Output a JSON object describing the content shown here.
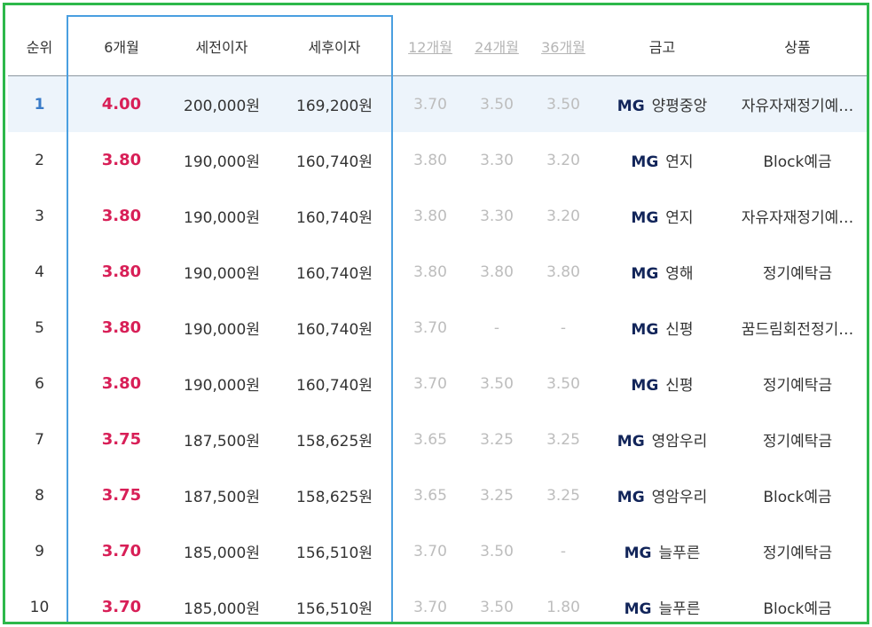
{
  "colors": {
    "border": "#2db84a",
    "highlight_box": "#4a9fe0",
    "rate": "#d81f57",
    "rank_top": "#3a7bc8",
    "mg": "#12255a"
  },
  "header": {
    "rank": "순위",
    "m6": "6개월",
    "pre_tax": "세전이자",
    "post_tax": "세후이자",
    "m12": "12개월",
    "m24": "24개월",
    "m36": "36개월",
    "bank": "금고",
    "product": "상품"
  },
  "rows": [
    {
      "rank": "1",
      "m6": "4.00",
      "pre": "200,000원",
      "post": "169,200원",
      "m12": "3.70",
      "m24": "3.50",
      "m36": "3.50",
      "mg": "MG",
      "bank": "양평중앙",
      "product": "자유자재정기예…"
    },
    {
      "rank": "2",
      "m6": "3.80",
      "pre": "190,000원",
      "post": "160,740원",
      "m12": "3.80",
      "m24": "3.30",
      "m36": "3.20",
      "mg": "MG",
      "bank": "연지",
      "product": "Block예금"
    },
    {
      "rank": "3",
      "m6": "3.80",
      "pre": "190,000원",
      "post": "160,740원",
      "m12": "3.80",
      "m24": "3.30",
      "m36": "3.20",
      "mg": "MG",
      "bank": "연지",
      "product": "자유자재정기예…"
    },
    {
      "rank": "4",
      "m6": "3.80",
      "pre": "190,000원",
      "post": "160,740원",
      "m12": "3.80",
      "m24": "3.80",
      "m36": "3.80",
      "mg": "MG",
      "bank": "영해",
      "product": "정기예탁금"
    },
    {
      "rank": "5",
      "m6": "3.80",
      "pre": "190,000원",
      "post": "160,740원",
      "m12": "3.70",
      "m24": "-",
      "m36": "-",
      "mg": "MG",
      "bank": "신평",
      "product": "꿈드림회전정기…"
    },
    {
      "rank": "6",
      "m6": "3.80",
      "pre": "190,000원",
      "post": "160,740원",
      "m12": "3.70",
      "m24": "3.50",
      "m36": "3.50",
      "mg": "MG",
      "bank": "신평",
      "product": "정기예탁금"
    },
    {
      "rank": "7",
      "m6": "3.75",
      "pre": "187,500원",
      "post": "158,625원",
      "m12": "3.65",
      "m24": "3.25",
      "m36": "3.25",
      "mg": "MG",
      "bank": "영암우리",
      "product": "정기예탁금"
    },
    {
      "rank": "8",
      "m6": "3.75",
      "pre": "187,500원",
      "post": "158,625원",
      "m12": "3.65",
      "m24": "3.25",
      "m36": "3.25",
      "mg": "MG",
      "bank": "영암우리",
      "product": "Block예금"
    },
    {
      "rank": "9",
      "m6": "3.70",
      "pre": "185,000원",
      "post": "156,510원",
      "m12": "3.70",
      "m24": "3.50",
      "m36": "-",
      "mg": "MG",
      "bank": "늘푸른",
      "product": "정기예탁금"
    },
    {
      "rank": "10",
      "m6": "3.70",
      "pre": "185,000원",
      "post": "156,510원",
      "m12": "3.70",
      "m24": "3.50",
      "m36": "1.80",
      "mg": "MG",
      "bank": "늘푸른",
      "product": "Block예금"
    }
  ]
}
